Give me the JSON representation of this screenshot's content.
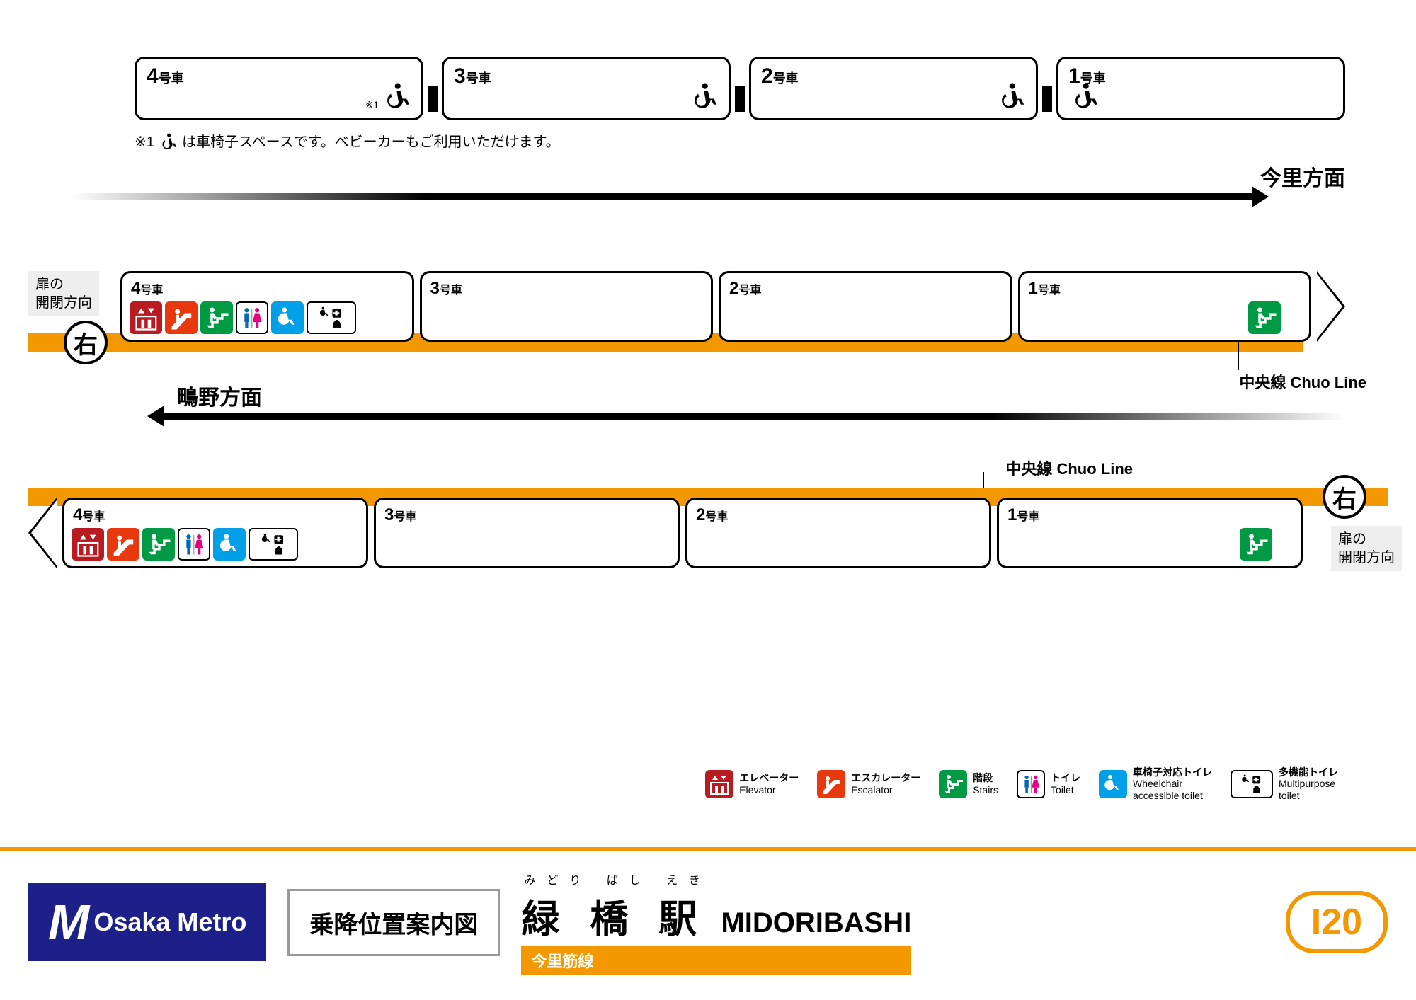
{
  "colors": {
    "line": "#f39800",
    "logo_bg": "#1d2088",
    "elevator": "#b81c22",
    "escalator": "#e8380d",
    "stairs": "#009944",
    "toilet_male": "#0068b7",
    "toilet_female": "#e4007f",
    "wc_toilet": "#00a0e9"
  },
  "top_cars": [
    {
      "num": "4",
      "suffix": "号車",
      "note": "※1"
    },
    {
      "num": "3",
      "suffix": "号車"
    },
    {
      "num": "2",
      "suffix": "号車"
    },
    {
      "num": "1",
      "suffix": "号車"
    }
  ],
  "footnote_prefix": "※1",
  "footnote_text": "は車椅子スペースです。ベビーカーもご利用いただけます。",
  "direction_right": "今里方面",
  "direction_left": "鴫野方面",
  "door_side_label": "扉の\n開閉方向",
  "door_side_symbol": "右",
  "transfer_line_jp": "中央線",
  "transfer_line_en": "Chuo Line",
  "platform_cars": [
    {
      "num": "4",
      "suffix": "号車",
      "facilities": [
        "elevator",
        "escalator",
        "stairs",
        "toilet",
        "wc_toilet",
        "multi_toilet"
      ]
    },
    {
      "num": "3",
      "suffix": "号車",
      "facilities": []
    },
    {
      "num": "2",
      "suffix": "号車",
      "facilities": []
    },
    {
      "num": "1",
      "suffix": "号車",
      "facilities": [
        "stairs"
      ]
    }
  ],
  "legend": [
    {
      "key": "elevator",
      "jp": "エレベーター",
      "en": "Elevator"
    },
    {
      "key": "escalator",
      "jp": "エスカレーター",
      "en": "Escalator"
    },
    {
      "key": "stairs",
      "jp": "階段",
      "en": "Stairs"
    },
    {
      "key": "toilet",
      "jp": "トイレ",
      "en": "Toilet"
    },
    {
      "key": "wc_toilet",
      "jp": "車椅子対応トイレ",
      "en": "Wheelchair\naccessible toilet"
    },
    {
      "key": "multi_toilet",
      "jp": "多機能トイレ",
      "en": "Multipurpose\ntoilet"
    }
  ],
  "footer": {
    "logo_text": "Osaka Metro",
    "guide_title": "乗降位置案内図",
    "furigana": "みどり ばし えき",
    "station_jp": "緑 橋 駅",
    "station_en": "MIDORIBASHI",
    "line_name": "今里筋線",
    "station_code": "I20"
  }
}
